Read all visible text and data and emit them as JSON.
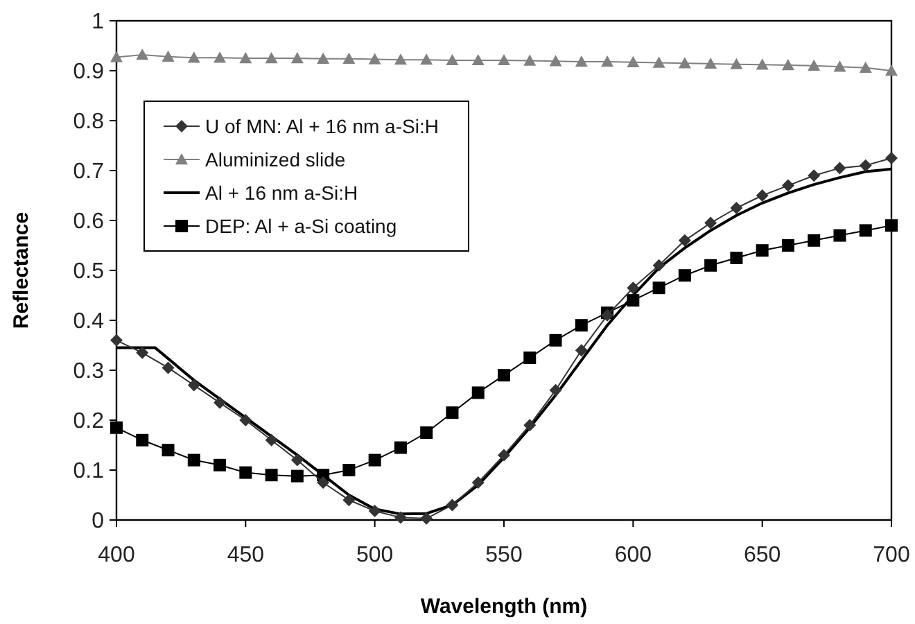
{
  "chart_data": {
    "type": "line",
    "xlabel": "Wavelength (nm)",
    "ylabel": "Reflectance",
    "x": [
      400,
      410,
      420,
      430,
      440,
      450,
      460,
      470,
      480,
      490,
      500,
      510,
      520,
      530,
      540,
      550,
      560,
      570,
      580,
      590,
      600,
      610,
      620,
      630,
      640,
      650,
      660,
      670,
      680,
      690,
      700
    ],
    "xlim": [
      400,
      700
    ],
    "xticks": [
      400,
      450,
      500,
      550,
      600,
      650,
      700
    ],
    "ylim": [
      0,
      1
    ],
    "yticks": [
      0,
      {
        "value": 0.1,
        "label": "0.1"
      },
      {
        "value": 0.2,
        "label": "0.2"
      },
      {
        "value": 0.3,
        "label": "0.3"
      },
      {
        "value": 0.4,
        "label": "0.4"
      },
      {
        "value": 0.5,
        "label": "0.5"
      },
      {
        "value": 0.6,
        "label": "0.6"
      },
      {
        "value": 0.7,
        "label": "0.7"
      },
      {
        "value": 0.8,
        "label": "0.8"
      },
      {
        "value": 0.9,
        "label": "0.9"
      },
      1
    ],
    "grid": false,
    "legend": "top left",
    "series": [
      {
        "name": "U of MN: Al + 16 nm a-Si:H",
        "color": "#333333",
        "marker": "diamond",
        "values": [
          0.36,
          0.335,
          0.305,
          0.27,
          0.235,
          0.2,
          0.16,
          0.12,
          0.075,
          0.04,
          0.018,
          0.005,
          0.003,
          0.03,
          0.075,
          0.13,
          0.19,
          0.26,
          0.34,
          0.41,
          0.465,
          0.51,
          0.56,
          0.595,
          0.625,
          0.65,
          0.67,
          0.69,
          0.705,
          0.71,
          0.725
        ]
      },
      {
        "name": "Aluminized slide",
        "color": "#808080",
        "marker": "triangle",
        "values": [
          0.927,
          0.932,
          0.928,
          0.926,
          0.926,
          0.925,
          0.925,
          0.925,
          0.924,
          0.924,
          0.923,
          0.922,
          0.922,
          0.921,
          0.921,
          0.921,
          0.92,
          0.919,
          0.918,
          0.918,
          0.917,
          0.916,
          0.915,
          0.914,
          0.913,
          0.912,
          0.911,
          0.91,
          0.908,
          0.906,
          0.9
        ]
      },
      {
        "name": "Al + 16 nm a-Si:H",
        "color": "#000000",
        "marker": "none",
        "x": [
          400,
          415,
          430,
          450,
          470,
          480,
          490,
          500,
          510,
          520,
          530,
          540,
          550,
          560,
          570,
          580,
          590,
          600,
          610,
          620,
          630,
          640,
          650,
          660,
          670,
          680,
          690,
          700
        ],
        "values": [
          0.345,
          0.345,
          0.28,
          0.205,
          0.13,
          0.09,
          0.05,
          0.022,
          0.012,
          0.013,
          0.03,
          0.07,
          0.125,
          0.185,
          0.25,
          0.32,
          0.39,
          0.45,
          0.505,
          0.545,
          0.58,
          0.61,
          0.635,
          0.655,
          0.672,
          0.686,
          0.698,
          0.703
        ]
      },
      {
        "name": "DEP: Al + a-Si coating",
        "color": "#000000",
        "marker": "square",
        "values": [
          0.185,
          0.16,
          0.14,
          0.12,
          0.11,
          0.095,
          0.09,
          0.088,
          0.09,
          0.1,
          0.12,
          0.145,
          0.175,
          0.215,
          0.255,
          0.29,
          0.325,
          0.36,
          0.39,
          0.415,
          0.44,
          0.465,
          0.49,
          0.51,
          0.525,
          0.54,
          0.55,
          0.56,
          0.57,
          0.58,
          0.59
        ]
      }
    ]
  }
}
